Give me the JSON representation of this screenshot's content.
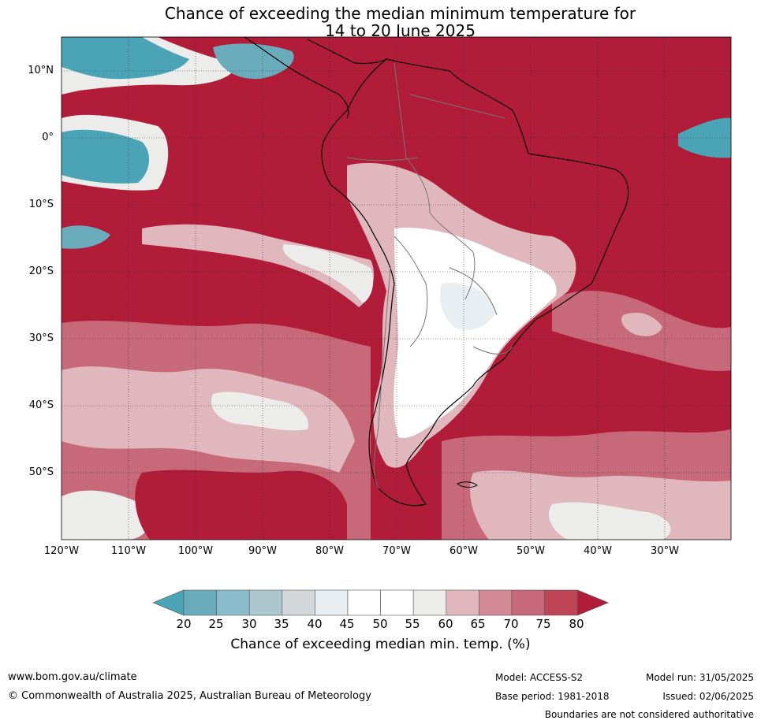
{
  "title": {
    "line1": "Chance of exceeding the median minimum temperature for",
    "line2": "14 to 20 June 2025"
  },
  "map": {
    "lat_labels": [
      "10°N",
      "0°",
      "10°S",
      "20°S",
      "30°S",
      "40°S",
      "50°S"
    ],
    "lon_labels": [
      "120°W",
      "110°W",
      "100°W",
      "90°W",
      "80°W",
      "70°W",
      "60°W",
      "50°W",
      "40°W",
      "30°W"
    ],
    "colors": {
      "c20": "#4aa4b5",
      "c25": "#6aacbb",
      "c30": "#8abccb",
      "c35": "#abc6cd",
      "c40": "#d4d7d9",
      "c45": "#e8eef2",
      "c50": "#ffffff",
      "c55": "#ffffff",
      "c60": "#ececeb",
      "c65": "#e0b7bd",
      "c70": "#d48a96",
      "c75": "#c8697a",
      "c80": "#bd4555",
      "c80plus": "#b11c38"
    }
  },
  "colorbar": {
    "ticks": [
      "20",
      "25",
      "30",
      "35",
      "40",
      "45",
      "50",
      "55",
      "60",
      "65",
      "70",
      "75",
      "80"
    ],
    "label": "Chance of exceeding median min. temp. (%)"
  },
  "footer": {
    "website": "www.bom.gov.au/climate",
    "copyright": "© Commonwealth of Australia 2025, Australian Bureau of Meteorology",
    "model": "Model: ACCESS-S2",
    "base_period": "Base period: 1981-2018",
    "model_run": "Model run: 31/05/2025",
    "issued": "Issued: 02/06/2025",
    "disclaimer": "Boundaries are not considered authoritative"
  }
}
